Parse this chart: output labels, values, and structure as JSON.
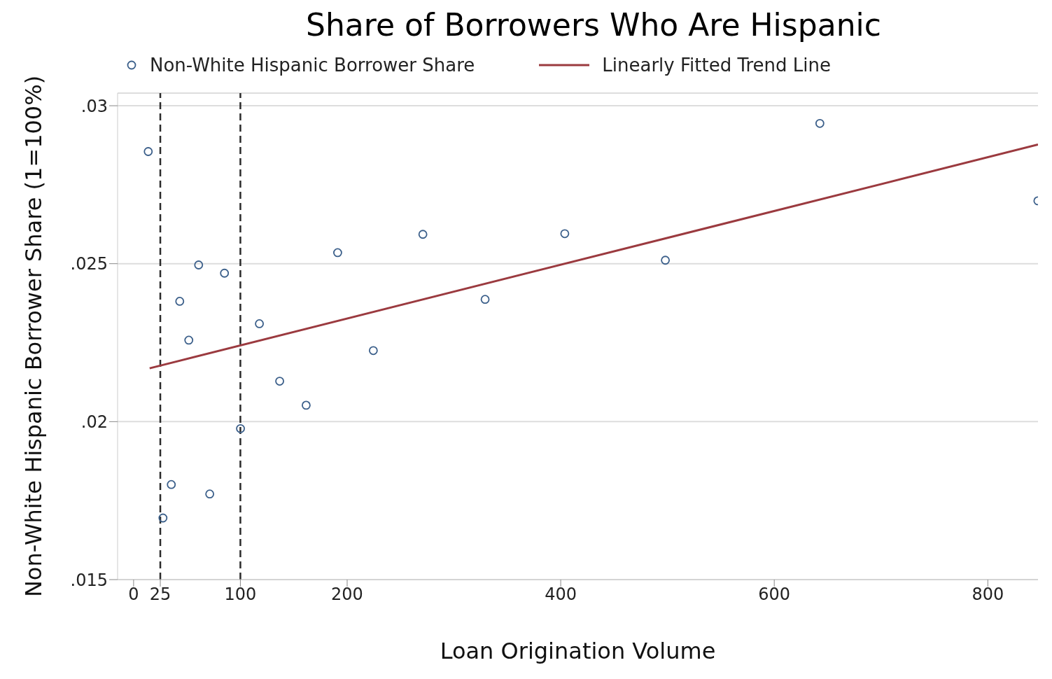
{
  "chart_data": {
    "type": "scatter",
    "title": "Share of Borrowers Who Are Hispanic",
    "xlabel": "Loan Origination Volume",
    "ylabel": "Non-White Hispanic Borrower Share (1=100%)",
    "series": [
      {
        "name": "Non-White Hispanic Borrower Share",
        "type": "scatter",
        "marker": "circle",
        "color": "#3b5f8a",
        "x": [
          13.7,
          27.5,
          35.3,
          43.2,
          51.7,
          60.9,
          71.3,
          85.1,
          100.1,
          117.8,
          136.8,
          161.6,
          191.1,
          224.5,
          270.9,
          329.2,
          403.8,
          498,
          642.7,
          846.9
        ],
        "values": [
          0.02855,
          0.01695,
          0.01801,
          0.02381,
          0.02258,
          0.02496,
          0.01771,
          0.0247,
          0.01978,
          0.0231,
          0.02128,
          0.02052,
          0.02535,
          0.02225,
          0.02593,
          0.02387,
          0.02595,
          0.02511,
          0.02944,
          0.02699
        ]
      },
      {
        "name": "Linearly Fitted Trend Line",
        "type": "line",
        "marker": "none",
        "line_style": "solid",
        "color": "#9b3a3f",
        "x": [
          15,
          847
        ],
        "values": [
          0.02169,
          0.02877
        ]
      }
    ],
    "xlim": [
      -15,
      847
    ],
    "xticks": [
      0,
      25,
      100,
      200,
      400,
      600,
      800
    ],
    "ylim": [
      0.015,
      0.0304
    ],
    "yticks": [
      {
        "value": 0.015,
        "label": ".015"
      },
      {
        "value": 0.02,
        "label": ".02"
      },
      {
        "value": 0.025,
        "label": ".025"
      },
      {
        "value": 0.03,
        "label": ".03"
      }
    ],
    "ref_lines": [
      {
        "axis": "x",
        "value": 25,
        "color": "#2b2b2b",
        "line_style": "dashed"
      },
      {
        "axis": "x",
        "value": 100,
        "color": "#2b2b2b",
        "line_style": "dashed"
      }
    ],
    "grid": "y",
    "legend": "top left"
  }
}
